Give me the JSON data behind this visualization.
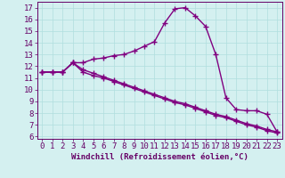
{
  "line1_x": [
    0,
    1,
    2,
    3,
    4,
    5,
    6,
    7,
    8,
    9,
    10,
    11,
    12,
    13,
    14,
    15,
    16,
    17,
    18,
    19,
    20,
    21,
    22,
    23
  ],
  "line1_y": [
    11.5,
    11.5,
    11.5,
    12.3,
    12.3,
    12.6,
    12.7,
    12.9,
    13.0,
    13.3,
    13.7,
    14.1,
    15.7,
    16.9,
    17.0,
    16.3,
    15.4,
    13.0,
    9.3,
    8.3,
    8.2,
    8.2,
    7.9,
    6.4
  ],
  "line2_x": [
    0,
    1,
    2,
    3,
    4,
    5,
    6,
    7,
    8,
    9,
    10,
    11,
    12,
    13,
    14,
    15,
    16,
    17,
    18,
    19,
    20,
    21,
    22,
    23
  ],
  "line2_y": [
    11.5,
    11.5,
    11.5,
    12.3,
    11.5,
    11.2,
    11.0,
    10.7,
    10.4,
    10.1,
    9.8,
    9.5,
    9.2,
    8.9,
    8.7,
    8.4,
    8.1,
    7.8,
    7.6,
    7.3,
    7.0,
    6.8,
    6.5,
    6.3
  ],
  "line3_x": [
    0,
    1,
    2,
    3,
    4,
    5,
    6,
    7,
    8,
    9,
    10,
    11,
    12,
    13,
    14,
    15,
    16,
    17,
    18,
    19,
    20,
    21,
    22,
    23
  ],
  "line3_y": [
    11.5,
    11.5,
    11.5,
    12.3,
    11.7,
    11.4,
    11.1,
    10.8,
    10.5,
    10.2,
    9.9,
    9.6,
    9.3,
    9.0,
    8.8,
    8.5,
    8.2,
    7.9,
    7.7,
    7.4,
    7.1,
    6.9,
    6.6,
    6.4
  ],
  "color": "#800080",
  "bg_color": "#d4f0f0",
  "grid_color": "#b0dede",
  "xlabel": "Windchill (Refroidissement éolien,°C)",
  "xlim": [
    -0.5,
    23.5
  ],
  "ylim": [
    5.8,
    17.5
  ],
  "yticks": [
    6,
    7,
    8,
    9,
    10,
    11,
    12,
    13,
    14,
    15,
    16,
    17
  ],
  "xticks": [
    0,
    1,
    2,
    3,
    4,
    5,
    6,
    7,
    8,
    9,
    10,
    11,
    12,
    13,
    14,
    15,
    16,
    17,
    18,
    19,
    20,
    21,
    22,
    23
  ],
  "marker": "+",
  "marker_size": 4,
  "line_width": 1.0,
  "font_color": "#660066",
  "font_size": 6.5,
  "xlabel_fontsize": 6.5
}
